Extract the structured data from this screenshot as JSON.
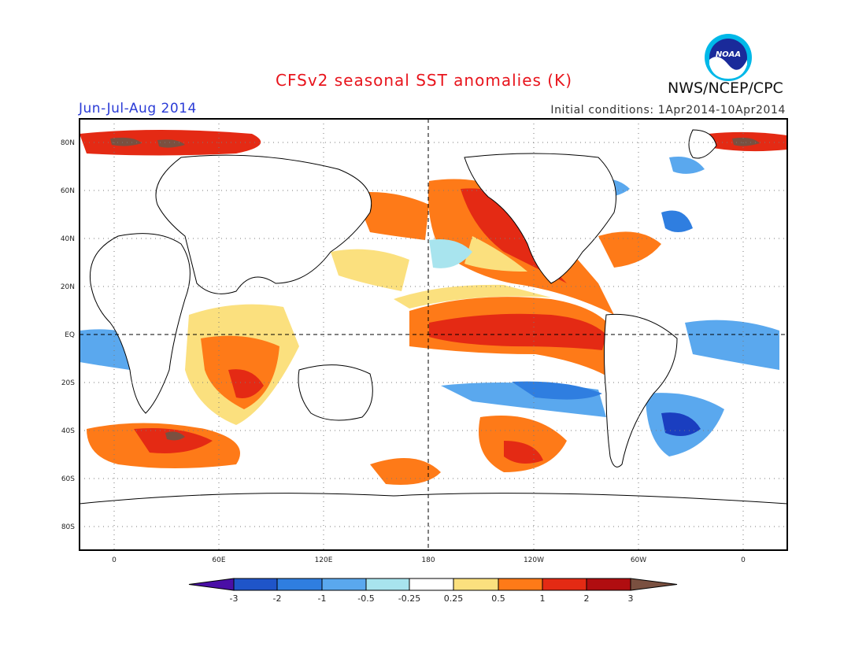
{
  "title": "CFSv2 seasonal SST anomalies (K)",
  "agency": "NWS/NCEP/CPC",
  "logo_text": "NOAA",
  "season": "Jun-Jul-Aug 2014",
  "initial_conditions": "Initial conditions: 1Apr2014-10Apr2014",
  "lat_labels": [
    "80N",
    "60N",
    "40N",
    "20N",
    "EQ",
    "20S",
    "40S",
    "60S",
    "80S"
  ],
  "lon_labels": [
    "0",
    "60E",
    "120E",
    "180",
    "120W",
    "60W",
    "0"
  ],
  "colorbar": {
    "labels": [
      "-3",
      "-2",
      "-1",
      "-0.5",
      "-0.25",
      "0.25",
      "0.5",
      "1",
      "2",
      "3"
    ],
    "colors": [
      "#4a0fa6",
      "#1f55c9",
      "#2f7ee0",
      "#5aa8ee",
      "#a8e4ee",
      "#ffffff",
      "#fbe07e",
      "#fe7a18",
      "#e42a14",
      "#b00d10",
      "#7a5040"
    ]
  },
  "anomaly_colors": {
    "strong_cold": "#1a3ec0",
    "cold": "#2f7ee0",
    "cool": "#5aa8ee",
    "slightly_cool": "#a8e4ee",
    "slightly_warm": "#fbe07e",
    "warm": "#fe7a18",
    "hot": "#e42a14",
    "very_hot": "#b00d10",
    "extreme": "#7a5040"
  }
}
